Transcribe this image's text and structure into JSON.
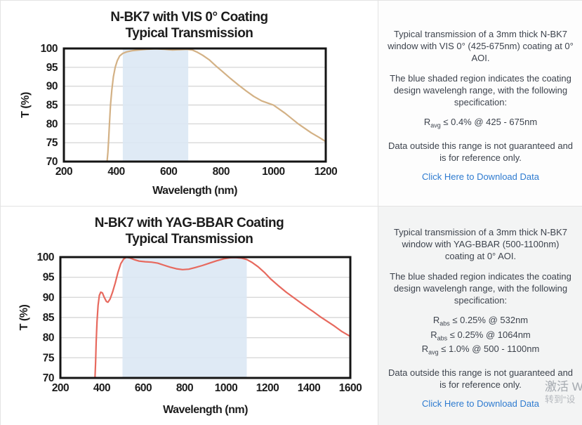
{
  "chart_data": [
    {
      "type": "line",
      "title": "N-BK7 with VIS 0° Coating",
      "subtitle": "Typical Transmission",
      "xlabel": "Wavelength (nm)",
      "ylabel": "T (%)",
      "xlim": [
        200,
        1200
      ],
      "ylim": [
        70,
        100
      ],
      "xticks": [
        200,
        400,
        600,
        800,
        1000,
        1200
      ],
      "yticks": [
        70,
        75,
        80,
        85,
        90,
        95,
        100
      ],
      "grid": "horizontal",
      "shaded_region": {
        "from": 425,
        "to": 675,
        "label": "coating design wavelength range",
        "color": "#dce8f4"
      },
      "series": [
        {
          "name": "Typical Transmission",
          "color": "#d3b185",
          "points": [
            [
              365,
              70
            ],
            [
              368,
              72.5
            ],
            [
              371,
              76
            ],
            [
              374,
              80
            ],
            [
              378,
              85
            ],
            [
              383,
              89
            ],
            [
              389,
              92.5
            ],
            [
              396,
              95
            ],
            [
              404,
              96.8
            ],
            [
              413,
              98
            ],
            [
              425,
              98.7
            ],
            [
              440,
              99.1
            ],
            [
              460,
              99.4
            ],
            [
              485,
              99.6
            ],
            [
              515,
              99.8
            ],
            [
              550,
              99.9
            ],
            [
              585,
              99.8
            ],
            [
              615,
              99.6
            ],
            [
              645,
              99.7
            ],
            [
              670,
              99.8
            ],
            [
              690,
              99.6
            ],
            [
              710,
              99.0
            ],
            [
              730,
              98.2
            ],
            [
              755,
              97.0
            ],
            [
              780,
              95.4
            ],
            [
              805,
              93.9
            ],
            [
              835,
              92.1
            ],
            [
              865,
              90.4
            ],
            [
              895,
              88.8
            ],
            [
              925,
              87.3
            ],
            [
              955,
              86.1
            ],
            [
              1000,
              85.0
            ],
            [
              1045,
              82.8
            ],
            [
              1095,
              80.0
            ],
            [
              1145,
              77.6
            ],
            [
              1175,
              76.4
            ],
            [
              1200,
              75.3
            ]
          ]
        }
      ]
    },
    {
      "type": "line",
      "title": "N-BK7 with YAG-BBAR Coating",
      "subtitle": "Typical Transmission",
      "xlabel": "Wavelength (nm)",
      "ylabel": "T (%)",
      "xlim": [
        200,
        1600
      ],
      "ylim": [
        70,
        100
      ],
      "xticks": [
        200,
        400,
        600,
        800,
        1000,
        1200,
        1400,
        1600
      ],
      "yticks": [
        70,
        75,
        80,
        85,
        90,
        95,
        100
      ],
      "grid": "horizontal",
      "shaded_region": {
        "from": 500,
        "to": 1100,
        "label": "coating design wavelength range",
        "color": "#dce8f4"
      },
      "series": [
        {
          "name": "Typical Transmission",
          "color": "#e7695e",
          "points": [
            [
              367,
              70
            ],
            [
              370,
              74
            ],
            [
              373,
              79
            ],
            [
              377,
              84
            ],
            [
              382,
              88
            ],
            [
              388,
              90.5
            ],
            [
              395,
              91.3
            ],
            [
              403,
              91.1
            ],
            [
              412,
              90.0
            ],
            [
              422,
              89.0
            ],
            [
              430,
              88.8
            ],
            [
              440,
              89.6
            ],
            [
              452,
              91.3
            ],
            [
              465,
              93.6
            ],
            [
              478,
              96.2
            ],
            [
              492,
              98.4
            ],
            [
              505,
              99.5
            ],
            [
              518,
              99.95
            ],
            [
              535,
              99.8
            ],
            [
              555,
              99.4
            ],
            [
              580,
              99.0
            ],
            [
              610,
              98.85
            ],
            [
              640,
              98.75
            ],
            [
              670,
              98.5
            ],
            [
              700,
              98.0
            ],
            [
              730,
              97.5
            ],
            [
              760,
              97.1
            ],
            [
              790,
              96.9
            ],
            [
              820,
              97.0
            ],
            [
              850,
              97.4
            ],
            [
              885,
              97.9
            ],
            [
              920,
              98.5
            ],
            [
              955,
              99.1
            ],
            [
              990,
              99.6
            ],
            [
              1020,
              99.85
            ],
            [
              1045,
              99.9
            ],
            [
              1075,
              99.75
            ],
            [
              1100,
              99.4
            ],
            [
              1125,
              98.7
            ],
            [
              1155,
              97.6
            ],
            [
              1185,
              96.2
            ],
            [
              1215,
              94.6
            ],
            [
              1250,
              93.0
            ],
            [
              1290,
              91.3
            ],
            [
              1330,
              89.8
            ],
            [
              1370,
              88.3
            ],
            [
              1400,
              87.2
            ],
            [
              1420,
              86.5
            ],
            [
              1455,
              85.2
            ],
            [
              1490,
              84.0
            ],
            [
              1525,
              82.8
            ],
            [
              1560,
              81.5
            ],
            [
              1600,
              80.3
            ]
          ]
        }
      ]
    }
  ],
  "panels": [
    {
      "description": "Typical transmission of a 3mm thick N-BK7 window with VIS 0° (425-675nm) coating at 0° AOI.",
      "region_note": "The blue shaded region indicates the coating design wavelengh range, with the following specification:",
      "specs": [
        {
          "base": "R",
          "sub": "avg",
          "rest": " ≤ 0.4% @ 425 - 675nm"
        }
      ],
      "disclaimer": "Data outside this range is not guaranteed and is for reference only.",
      "link_label": "Click Here to Download Data"
    },
    {
      "description": "Typical transmission of a 3mm thick N-BK7 window with YAG-BBAR (500-1100nm) coating at 0° AOI.",
      "region_note": "The blue shaded region indicates the coating design wavelengh range, with the following specification:",
      "specs": [
        {
          "base": "R",
          "sub": "abs",
          "rest": " ≤ 0.25% @ 532nm"
        },
        {
          "base": "R",
          "sub": "abs",
          "rest": " ≤ 0.25% @ 1064nm"
        },
        {
          "base": "R",
          "sub": "avg",
          "rest": " ≤ 1.0% @ 500 - 1100nm"
        }
      ],
      "disclaimer": "Data outside this range is not guaranteed and is for reference only.",
      "link_label": "Click Here to Download Data"
    }
  ],
  "watermark": {
    "line1": "激活 W",
    "line2": "转到“设"
  },
  "colors": {
    "accent_link": "#2e7bd0",
    "curve_vis": "#d3b185",
    "curve_yag": "#e7695e",
    "shade_blue": "#dce8f4",
    "grid_gray": "#d8d8d8",
    "plot_border": "#141414",
    "panel_gray": "#f3f4f4"
  }
}
